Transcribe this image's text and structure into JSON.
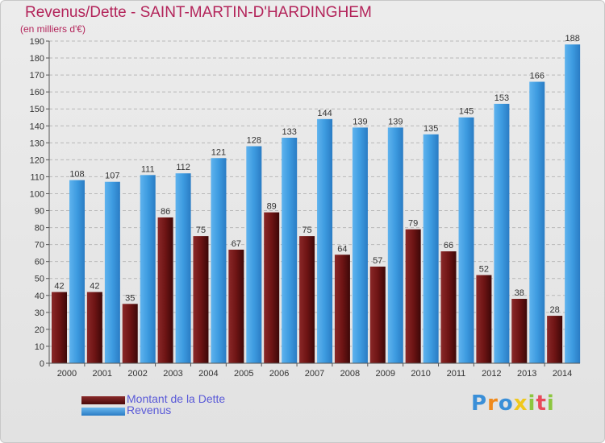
{
  "header": {
    "title": "Revenus/Dette - SAINT-MARTIN-D'HARDINGHEM",
    "subtitle": "(en milliers d'€)"
  },
  "chart_data": {
    "type": "bar",
    "categories": [
      "2000",
      "2001",
      "2002",
      "2003",
      "2004",
      "2005",
      "2006",
      "2007",
      "2008",
      "2009",
      "2010",
      "2011",
      "2012",
      "2013",
      "2014"
    ],
    "series": [
      {
        "name": "Montant de la Dette",
        "color": "#7a1a1a",
        "values": [
          42,
          42,
          35,
          86,
          75,
          67,
          89,
          75,
          64,
          57,
          79,
          66,
          52,
          38,
          28
        ]
      },
      {
        "name": "Revenus",
        "color": "#3d9be0",
        "values": [
          108,
          107,
          111,
          112,
          121,
          128,
          133,
          144,
          139,
          139,
          135,
          145,
          153,
          166,
          188
        ]
      }
    ],
    "ylim": [
      0,
      190
    ],
    "ytick_step": 10,
    "grid": true,
    "legend_position": "bottom-left"
  },
  "logo": {
    "letters": [
      "P",
      "r",
      "o",
      "x",
      "i",
      "t",
      "i"
    ],
    "colors": [
      "#3a8fd8",
      "#f08a1c",
      "#3a8fd8",
      "#f0c81c",
      "#8cc63f",
      "#e84a5a",
      "#8cc63f"
    ]
  }
}
